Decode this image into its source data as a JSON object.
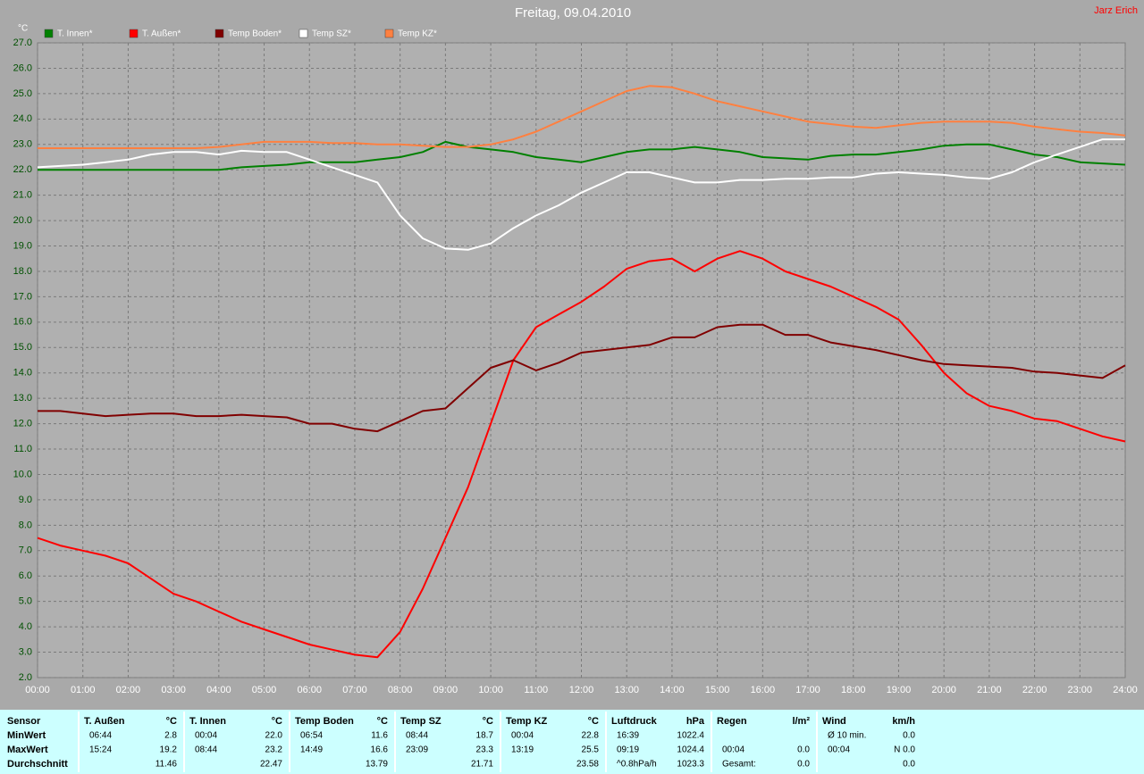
{
  "chart_data": {
    "type": "line",
    "title": "Freitag, 09.04.2010",
    "author": "Jarz Erich",
    "y_unit": "°C",
    "x": [
      0,
      0.5,
      1,
      1.5,
      2,
      2.5,
      3,
      3.5,
      4,
      4.5,
      5,
      5.5,
      6,
      6.5,
      7,
      7.5,
      8,
      8.5,
      9,
      9.5,
      10,
      10.5,
      11,
      11.5,
      12,
      12.5,
      13,
      13.5,
      14,
      14.5,
      15,
      15.5,
      16,
      16.5,
      17,
      17.5,
      18,
      18.5,
      19,
      19.5,
      20,
      20.5,
      21,
      21.5,
      22,
      22.5,
      23,
      23.5,
      24
    ],
    "series": [
      {
        "name": "T. Innen*",
        "color": "#008000",
        "values": [
          22.0,
          22.0,
          22.0,
          22.0,
          22.0,
          22.0,
          22.0,
          22.0,
          22.0,
          22.1,
          22.15,
          22.2,
          22.3,
          22.3,
          22.3,
          22.4,
          22.5,
          22.7,
          23.1,
          22.9,
          22.8,
          22.7,
          22.5,
          22.4,
          22.3,
          22.5,
          22.7,
          22.8,
          22.8,
          22.9,
          22.8,
          22.7,
          22.5,
          22.45,
          22.4,
          22.55,
          22.6,
          22.6,
          22.7,
          22.8,
          22.95,
          23.0,
          23.0,
          22.8,
          22.6,
          22.5,
          22.3,
          22.25,
          22.2
        ]
      },
      {
        "name": "T. Außen*",
        "color": "#ff0000",
        "values": [
          7.5,
          7.2,
          7.0,
          6.8,
          6.5,
          5.9,
          5.3,
          5.0,
          4.6,
          4.2,
          3.9,
          3.6,
          3.3,
          3.1,
          2.9,
          2.8,
          3.8,
          5.5,
          7.5,
          9.5,
          12.0,
          14.5,
          15.8,
          16.3,
          16.8,
          17.4,
          18.1,
          18.4,
          18.5,
          18.0,
          18.5,
          18.8,
          18.5,
          18.0,
          17.7,
          17.4,
          17.0,
          16.6,
          16.1,
          15.1,
          14.0,
          13.2,
          12.7,
          12.5,
          12.2,
          12.1,
          11.8,
          11.5,
          11.3
        ]
      },
      {
        "name": "Temp Boden*",
        "color": "#800000",
        "values": [
          12.5,
          12.5,
          12.4,
          12.3,
          12.35,
          12.4,
          12.4,
          12.3,
          12.3,
          12.35,
          12.3,
          12.25,
          12.0,
          12.0,
          11.8,
          11.7,
          12.1,
          12.5,
          12.6,
          13.4,
          14.2,
          14.5,
          14.1,
          14.4,
          14.8,
          14.9,
          15.0,
          15.1,
          15.4,
          15.4,
          15.8,
          15.9,
          15.9,
          15.5,
          15.5,
          15.2,
          15.05,
          14.9,
          14.7,
          14.5,
          14.35,
          14.3,
          14.25,
          14.2,
          14.05,
          14.0,
          13.9,
          13.8,
          14.3
        ]
      },
      {
        "name": "Temp SZ*",
        "color": "#ffffff",
        "values": [
          22.1,
          22.15,
          22.2,
          22.3,
          22.4,
          22.6,
          22.7,
          22.7,
          22.6,
          22.75,
          22.7,
          22.7,
          22.4,
          22.1,
          21.8,
          21.5,
          20.2,
          19.3,
          18.9,
          18.85,
          19.1,
          19.7,
          20.2,
          20.6,
          21.1,
          21.5,
          21.9,
          21.9,
          21.7,
          21.5,
          21.5,
          21.6,
          21.6,
          21.65,
          21.65,
          21.7,
          21.7,
          21.85,
          21.9,
          21.85,
          21.8,
          21.7,
          21.65,
          21.9,
          22.3,
          22.6,
          22.9,
          23.2,
          23.2
        ]
      },
      {
        "name": "Temp KZ*",
        "color": "#ff8040",
        "values": [
          22.85,
          22.85,
          22.85,
          22.85,
          22.85,
          22.85,
          22.85,
          22.85,
          22.9,
          23.0,
          23.1,
          23.1,
          23.1,
          23.05,
          23.05,
          23.0,
          23.0,
          22.95,
          22.9,
          22.9,
          23.0,
          23.2,
          23.5,
          23.9,
          24.3,
          24.7,
          25.1,
          25.3,
          25.25,
          25.0,
          24.7,
          24.5,
          24.3,
          24.1,
          23.9,
          23.8,
          23.7,
          23.65,
          23.75,
          23.85,
          23.9,
          23.9,
          23.9,
          23.85,
          23.7,
          23.6,
          23.5,
          23.45,
          23.35
        ]
      }
    ],
    "xlim": [
      0,
      24
    ],
    "ylim": [
      2,
      27
    ],
    "xticks": [
      {
        "value": 0,
        "label": "00:00"
      },
      {
        "value": 1,
        "label": "01:00"
      },
      {
        "value": 2,
        "label": "02:00"
      },
      {
        "value": 3,
        "label": "03:00"
      },
      {
        "value": 4,
        "label": "04:00"
      },
      {
        "value": 5,
        "label": "05:00"
      },
      {
        "value": 6,
        "label": "06:00"
      },
      {
        "value": 7,
        "label": "07:00"
      },
      {
        "value": 8,
        "label": "08:00"
      },
      {
        "value": 9,
        "label": "09:00"
      },
      {
        "value": 10,
        "label": "10:00"
      },
      {
        "value": 11,
        "label": "11:00"
      },
      {
        "value": 12,
        "label": "12:00"
      },
      {
        "value": 13,
        "label": "13:00"
      },
      {
        "value": 14,
        "label": "14:00"
      },
      {
        "value": 15,
        "label": "15:00"
      },
      {
        "value": 16,
        "label": "16:00"
      },
      {
        "value": 17,
        "label": "17:00"
      },
      {
        "value": 18,
        "label": "18:00"
      },
      {
        "value": 19,
        "label": "19:00"
      },
      {
        "value": 20,
        "label": "20:00"
      },
      {
        "value": 21,
        "label": "21:00"
      },
      {
        "value": 22,
        "label": "22:00"
      },
      {
        "value": 23,
        "label": "23:00"
      },
      {
        "value": 24,
        "label": "24:00"
      }
    ],
    "yticks": [
      {
        "value": 2,
        "label": "2.0"
      },
      {
        "value": 3,
        "label": "3.0"
      },
      {
        "value": 4,
        "label": "4.0"
      },
      {
        "value": 5,
        "label": "5.0"
      },
      {
        "value": 6,
        "label": "6.0"
      },
      {
        "value": 7,
        "label": "7.0"
      },
      {
        "value": 8,
        "label": "8.0"
      },
      {
        "value": 9,
        "label": "9.0"
      },
      {
        "value": 10,
        "label": "10.0"
      },
      {
        "value": 11,
        "label": "11.0"
      },
      {
        "value": 12,
        "label": "12.0"
      },
      {
        "value": 13,
        "label": "13.0"
      },
      {
        "value": 14,
        "label": "14.0"
      },
      {
        "value": 15,
        "label": "15.0"
      },
      {
        "value": 16,
        "label": "16.0"
      },
      {
        "value": 17,
        "label": "17.0"
      },
      {
        "value": 18,
        "label": "18.0"
      },
      {
        "value": 19,
        "label": "19.0"
      },
      {
        "value": 20,
        "label": "20.0"
      },
      {
        "value": 21,
        "label": "21.0"
      },
      {
        "value": 22,
        "label": "22.0"
      },
      {
        "value": 23,
        "label": "23.0"
      },
      {
        "value": 24,
        "label": "24.0"
      },
      {
        "value": 25,
        "label": "25.0"
      },
      {
        "value": 26,
        "label": "26.0"
      },
      {
        "value": 27,
        "label": "27.0"
      }
    ],
    "grid": true,
    "legend": "top"
  },
  "table": {
    "row_labels": [
      "Sensor",
      "MinWert",
      "MaxWert",
      "Durchschnitt"
    ],
    "groups": [
      {
        "name": "T. Außen",
        "unit": "°C",
        "rows": [
          {
            "time": "06:44",
            "value": "2.8"
          },
          {
            "time": "15:24",
            "value": "19.2"
          },
          {
            "value": "11.46"
          }
        ]
      },
      {
        "name": "T. Innen",
        "unit": "°C",
        "rows": [
          {
            "time": "00:04",
            "value": "22.0"
          },
          {
            "time": "08:44",
            "value": "23.2"
          },
          {
            "value": "22.47"
          }
        ]
      },
      {
        "name": "Temp Boden",
        "unit": "°C",
        "rows": [
          {
            "time": "06:54",
            "value": "11.6"
          },
          {
            "time": "14:49",
            "value": "16.6"
          },
          {
            "value": "13.79"
          }
        ]
      },
      {
        "name": "Temp SZ",
        "unit": "°C",
        "rows": [
          {
            "time": "08:44",
            "value": "18.7"
          },
          {
            "time": "23:09",
            "value": "23.3"
          },
          {
            "value": "21.71"
          }
        ]
      },
      {
        "name": "Temp KZ",
        "unit": "°C",
        "rows": [
          {
            "time": "00:04",
            "value": "22.8"
          },
          {
            "time": "13:19",
            "value": "25.5"
          },
          {
            "value": "23.58"
          }
        ]
      },
      {
        "name": "Luftdruck",
        "unit": "hPa",
        "rows": [
          {
            "time": "16:39",
            "value": "1022.4"
          },
          {
            "time": "09:19",
            "value": "1024.4"
          },
          {
            "time": "^0.8hPa/h",
            "value": "1023.3"
          }
        ]
      },
      {
        "name": "Regen",
        "unit": "l/m²",
        "rows": [
          null,
          {
            "time": "00:04",
            "value": "0.0"
          },
          {
            "time": "Gesamt:",
            "value": "0.0"
          }
        ]
      },
      {
        "name": "Wind",
        "unit": "km/h",
        "rows": [
          {
            "time": "Ø 10 min.",
            "value": "0.0"
          },
          {
            "time": "00:04",
            "value": "N 0.0"
          },
          {
            "value": "0.0"
          }
        ]
      }
    ]
  }
}
